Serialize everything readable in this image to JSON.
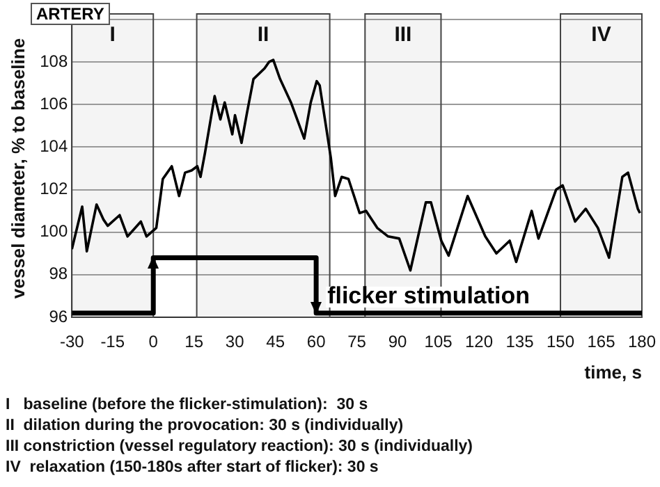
{
  "chart_data": {
    "type": "line",
    "xlabel": "time, s",
    "ylabel": "vessel diameter, % to baseline",
    "xlim": [
      -30,
      180
    ],
    "xticks": [
      -30,
      -15,
      0,
      15,
      30,
      45,
      60,
      75,
      90,
      105,
      120,
      135,
      150,
      165,
      180
    ],
    "ylim": [
      96,
      110
    ],
    "yticks": [
      96,
      98,
      100,
      102,
      104,
      106,
      108,
      {
        "value": 110,
        "label": null
      }
    ],
    "grid": "y",
    "legend": "bottom",
    "marker": "none",
    "line_style": "solid",
    "series": [
      {
        "color": "#000000",
        "x": [
          -30,
          -26.2,
          -24.5,
          -20.9,
          -18.4,
          -16.8,
          -12.4,
          -9.5,
          -4.6,
          -2.5,
          1.1,
          3.5,
          6.8,
          9.5,
          11.7,
          14.1,
          16.2,
          17.4,
          19,
          22.6,
          24.7,
          26.3,
          29.1,
          30.1,
          32.5,
          34.5,
          36.9,
          41,
          42.6,
          44.2,
          46.7,
          50.7,
          55.6,
          58,
          60.2,
          61.3,
          65.4,
          67,
          69.4,
          71.9,
          76,
          78.4,
          82.5,
          86.5,
          90.6,
          94.7,
          100.4,
          102.3,
          106.1,
          108.8,
          115.8,
          122.3,
          126.4,
          131.3,
          133.7,
          139.4,
          141.9,
          148.4,
          150.8,
          155.4,
          159.3,
          163.8,
          167.9,
          172.8,
          174.9,
          178.5,
          179.3
        ],
        "values": [
          99.2,
          101.2,
          99.1,
          101.3,
          100.6,
          100.3,
          100.8,
          99.8,
          100.5,
          99.8,
          100.2,
          102.5,
          103.1,
          101.7,
          102.8,
          102.9,
          103.1,
          102.6,
          103.7,
          106.4,
          105.3,
          106.1,
          104.6,
          105.5,
          104.2,
          105.6,
          107.2,
          107.7,
          108,
          108.1,
          107.2,
          106.1,
          104.4,
          106.1,
          107.1,
          106.9,
          103.5,
          101.7,
          102.6,
          102.5,
          100.9,
          101,
          100.2,
          99.8,
          99.7,
          98.2,
          101.4,
          101.4,
          99.6,
          98.9,
          101.7,
          99.8,
          99,
          99.6,
          98.6,
          101,
          99.7,
          102,
          102.2,
          100.5,
          101.1,
          100.2,
          98.8,
          102.6,
          102.8,
          101.1,
          100.9
        ]
      },
      {
        "type": "step",
        "name": "flicker stimulation",
        "color": "#000000",
        "x": [
          -30,
          0,
          60,
          180
        ],
        "values": [
          96.2,
          98.8,
          96.2,
          96.2
        ]
      }
    ],
    "bands": [
      {
        "axis": "x",
        "from": -30,
        "to": 0,
        "label": "I",
        "color": "#f4f4f4"
      },
      {
        "axis": "x",
        "from": 16,
        "to": 65,
        "label": "II",
        "color": "#f4f4f4"
      },
      {
        "axis": "x",
        "from": 78,
        "to": 106,
        "label": "III",
        "color": "#f4f4f4"
      },
      {
        "axis": "x",
        "from": 150,
        "to": 180,
        "label": "IV",
        "color": "#f4f4f4"
      }
    ],
    "annotations": [
      "ARTERY",
      "I   baseline (before the flicker-stimulation):  30 s",
      "II  dilation during the provocation: 30 s (individually)",
      "III constriction (vessel regulatory reaction): 30 s (individually)",
      "IV  relaxation (150-180s after start of flicker): 30 s"
    ]
  }
}
